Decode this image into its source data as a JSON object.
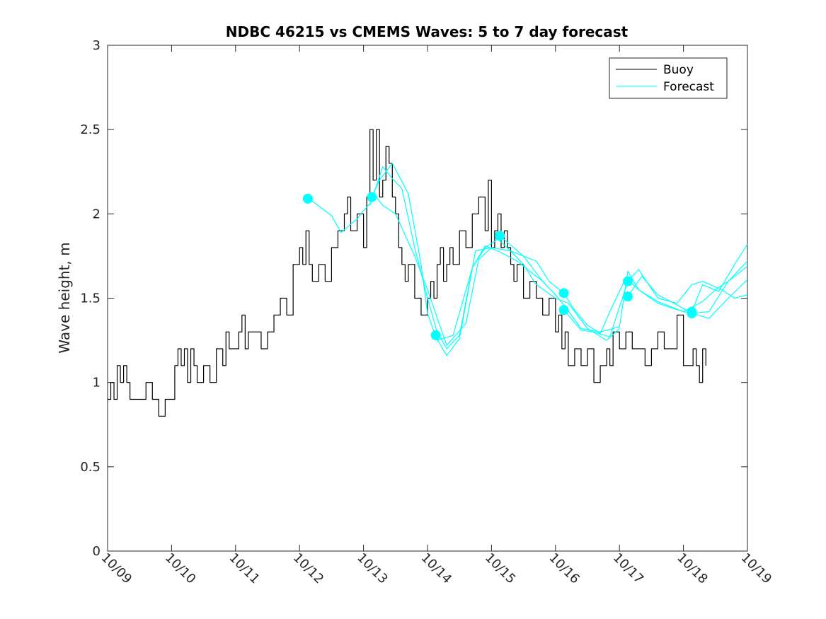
{
  "chart_data": {
    "type": "line",
    "title": "NDBC 46215 vs CMEMS Waves: 5 to 7 day forecast",
    "xlabel": "",
    "ylabel": "Wave height, m",
    "xlim": [
      0,
      10
    ],
    "ylim": [
      0,
      3
    ],
    "x_unit": "days since 10/09 00:00",
    "x_ticks": [
      0,
      1,
      2,
      3,
      4,
      5,
      6,
      7,
      8,
      9,
      10
    ],
    "x_tick_labels": [
      "10/09",
      "10/10",
      "10/11",
      "10/12",
      "10/13",
      "10/14",
      "10/15",
      "10/16",
      "10/17",
      "10/18",
      "10/19"
    ],
    "y_ticks": [
      0,
      0.5,
      1,
      1.5,
      2,
      2.5,
      3
    ],
    "y_tick_labels": [
      "0",
      "0.5",
      "1",
      "1.5",
      "2",
      "2.5",
      "3"
    ],
    "grid": false,
    "legend": {
      "placement": "top-right",
      "entries": [
        "Buoy",
        "Forecast"
      ]
    },
    "colors": {
      "buoy": "#000000",
      "forecast": "#00ffff",
      "axes": "#262626"
    },
    "series": [
      {
        "name": "Buoy",
        "color": "#000000",
        "x": [
          0.0,
          0.05,
          0.1,
          0.15,
          0.2,
          0.25,
          0.3,
          0.35,
          0.4,
          0.5,
          0.6,
          0.7,
          0.8,
          0.9,
          1.0,
          1.05,
          1.1,
          1.15,
          1.2,
          1.25,
          1.3,
          1.35,
          1.4,
          1.5,
          1.6,
          1.7,
          1.8,
          1.85,
          1.9,
          2.0,
          2.05,
          2.1,
          2.15,
          2.2,
          2.3,
          2.4,
          2.5,
          2.6,
          2.7,
          2.8,
          2.9,
          3.0,
          3.05,
          3.1,
          3.15,
          3.2,
          3.3,
          3.4,
          3.5,
          3.6,
          3.7,
          3.75,
          3.8,
          3.9,
          4.0,
          4.05,
          4.1,
          4.15,
          4.2,
          4.25,
          4.3,
          4.35,
          4.4,
          4.45,
          4.5,
          4.55,
          4.6,
          4.65,
          4.7,
          4.8,
          4.9,
          5.0,
          5.05,
          5.1,
          5.15,
          5.2,
          5.25,
          5.3,
          5.35,
          5.4,
          5.5,
          5.6,
          5.7,
          5.8,
          5.9,
          5.95,
          6.0,
          6.05,
          6.1,
          6.15,
          6.2,
          6.25,
          6.3,
          6.35,
          6.4,
          6.5,
          6.6,
          6.7,
          6.8,
          6.9,
          7.0,
          7.05,
          7.1,
          7.15,
          7.2,
          7.3,
          7.4,
          7.5,
          7.6,
          7.7,
          7.8,
          7.85,
          7.9,
          8.0,
          8.1,
          8.2,
          8.3,
          8.4,
          8.5,
          8.6,
          8.7,
          8.8,
          8.9,
          9.0,
          9.1,
          9.15,
          9.2,
          9.25,
          9.3,
          9.35
        ],
        "y": [
          0.9,
          1.0,
          0.9,
          1.1,
          1.0,
          1.1,
          1.0,
          0.9,
          0.9,
          0.9,
          1.0,
          0.9,
          0.8,
          0.9,
          0.9,
          1.1,
          1.2,
          1.1,
          1.2,
          1.0,
          1.2,
          1.1,
          1.0,
          1.1,
          1.0,
          1.2,
          1.1,
          1.3,
          1.2,
          1.2,
          1.3,
          1.4,
          1.2,
          1.3,
          1.3,
          1.2,
          1.3,
          1.4,
          1.5,
          1.4,
          1.7,
          1.8,
          1.7,
          1.9,
          1.7,
          1.6,
          1.7,
          1.6,
          1.8,
          1.9,
          2.0,
          2.1,
          1.9,
          2.0,
          1.8,
          2.1,
          2.5,
          2.2,
          2.5,
          2.1,
          2.2,
          2.4,
          2.3,
          2.1,
          2.0,
          1.8,
          1.7,
          1.6,
          1.7,
          1.5,
          1.4,
          1.5,
          1.6,
          1.5,
          1.7,
          1.8,
          1.6,
          1.7,
          1.8,
          1.7,
          1.9,
          1.8,
          2.0,
          2.1,
          1.9,
          2.2,
          1.8,
          1.9,
          2.0,
          1.8,
          1.9,
          1.8,
          1.7,
          1.6,
          1.7,
          1.5,
          1.6,
          1.5,
          1.4,
          1.5,
          1.3,
          1.4,
          1.2,
          1.3,
          1.1,
          1.2,
          1.1,
          1.2,
          1.0,
          1.1,
          1.2,
          1.1,
          1.3,
          1.2,
          1.3,
          1.2,
          1.2,
          1.1,
          1.2,
          1.3,
          1.2,
          1.2,
          1.4,
          1.1,
          1.1,
          1.2,
          1.1,
          1.0,
          1.2,
          1.1
        ]
      },
      {
        "name": "Forecast",
        "color": "#00ffff",
        "x": [
          3.15,
          3.5,
          3.65,
          3.9,
          4.0,
          4.2,
          4.3,
          4.5,
          4.8,
          5.0,
          5.3,
          5.6,
          5.8,
          6.0
        ],
        "y": [
          2.09,
          1.99,
          1.89,
          1.97,
          2.02,
          2.1,
          2.05,
          2.0,
          1.75,
          1.55,
          1.22,
          1.35,
          1.73,
          1.8
        ]
      },
      {
        "name": "Forecast",
        "color": "#00ffff",
        "x": [
          4.13,
          4.25,
          4.45,
          4.7,
          4.9,
          5.0,
          5.15,
          5.4,
          5.7,
          5.9,
          6.1,
          6.4,
          6.8,
          7.0
        ],
        "y": [
          2.1,
          2.2,
          2.3,
          2.12,
          1.7,
          1.41,
          1.25,
          1.28,
          1.68,
          1.81,
          1.78,
          1.72,
          1.6,
          1.52
        ]
      },
      {
        "name": "Forecast",
        "color": "#00ffff",
        "x": [
          4.1,
          4.3,
          4.45,
          4.6,
          4.8,
          5.0,
          5.15,
          5.3,
          5.5,
          5.7,
          5.9,
          6.1,
          6.3,
          6.5,
          6.7,
          7.0,
          7.2,
          7.5,
          7.8,
          8.0
        ],
        "y": [
          2.05,
          2.28,
          2.21,
          2.15,
          1.8,
          1.5,
          1.3,
          1.2,
          1.28,
          1.68,
          1.8,
          1.85,
          1.78,
          1.7,
          1.58,
          1.5,
          1.47,
          1.32,
          1.25,
          1.32
        ]
      },
      {
        "name": "Forecast",
        "color": "#00ffff",
        "x": [
          5.13,
          5.3,
          5.5,
          5.75,
          6.0,
          6.3,
          6.5,
          6.7,
          6.9,
          7.13,
          7.3,
          7.5,
          7.7,
          7.85,
          8.1,
          8.3,
          8.6,
          9.0,
          9.3,
          9.5,
          9.7,
          10.0
        ],
        "y": [
          1.27,
          1.16,
          1.26,
          1.78,
          1.8,
          1.78,
          1.75,
          1.72,
          1.6,
          1.53,
          1.43,
          1.34,
          1.29,
          1.42,
          1.62,
          1.55,
          1.48,
          1.42,
          1.48,
          1.55,
          1.6,
          1.72
        ]
      },
      {
        "name": "Forecast",
        "color": "#00ffff",
        "x": [
          6.13,
          6.5,
          6.8,
          7.0,
          7.13,
          7.4,
          7.7,
          8.0,
          8.13,
          8.3,
          8.6,
          9.0,
          9.13,
          9.4,
          9.7,
          10.0
        ],
        "y": [
          1.87,
          1.75,
          1.6,
          1.52,
          1.46,
          1.32,
          1.3,
          1.33,
          1.66,
          1.55,
          1.47,
          1.42,
          1.41,
          1.38,
          1.5,
          1.61
        ]
      },
      {
        "name": "Forecast",
        "color": "#00ffff",
        "x": [
          7.13,
          7.4,
          7.6,
          7.85,
          8.13,
          8.3,
          8.6,
          8.9,
          9.13,
          9.3,
          9.6,
          9.8,
          10.0
        ],
        "y": [
          1.43,
          1.31,
          1.3,
          1.27,
          1.6,
          1.67,
          1.5,
          1.47,
          1.58,
          1.6,
          1.55,
          1.5,
          1.52
        ]
      },
      {
        "name": "Forecast",
        "color": "#00ffff",
        "x": [
          8.13,
          8.35,
          8.6,
          8.9,
          9.13,
          9.4,
          9.7,
          10.0
        ],
        "y": [
          1.51,
          1.63,
          1.52,
          1.46,
          1.41,
          1.42,
          1.6,
          1.69
        ]
      },
      {
        "name": "Forecast",
        "color": "#00ffff",
        "x": [
          9.13,
          9.3,
          9.55,
          9.8,
          10.0
        ],
        "y": [
          1.42,
          1.58,
          1.54,
          1.7,
          1.82
        ]
      }
    ],
    "markers": {
      "name": "Forecast start points",
      "color": "#00ffff",
      "x": [
        3.13,
        4.13,
        5.13,
        6.13,
        7.13,
        7.13,
        8.13,
        8.13,
        9.13,
        9.13
      ],
      "y": [
        2.09,
        2.1,
        1.28,
        1.87,
        1.53,
        1.43,
        1.6,
        1.51,
        1.42,
        1.41
      ]
    }
  }
}
